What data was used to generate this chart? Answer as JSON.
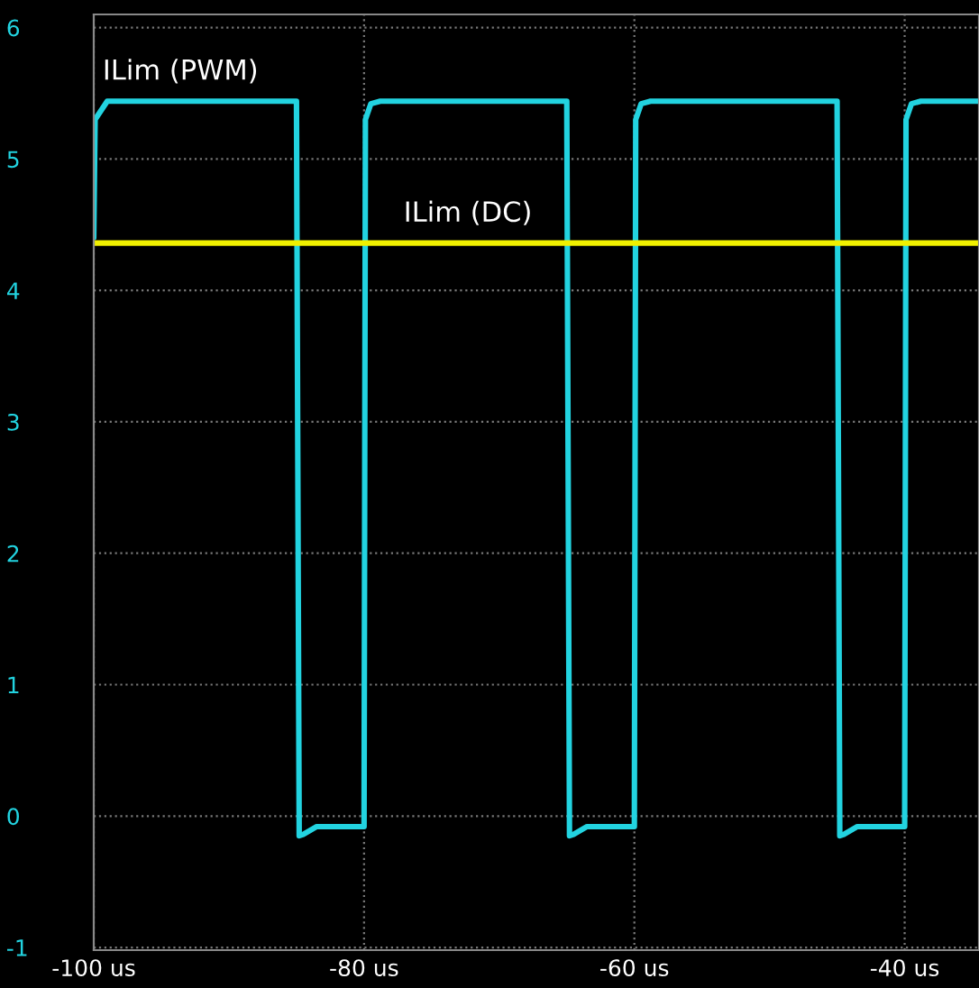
{
  "chart_data": {
    "type": "line",
    "xlim": [
      -100,
      -34.5
    ],
    "ylim": [
      -1.02,
      6.1
    ],
    "xticks": [
      {
        "value": -100,
        "label": "-100 us"
      },
      {
        "value": -80,
        "label": "-80 us"
      },
      {
        "value": -60,
        "label": "-60 us"
      },
      {
        "value": -40,
        "label": "-40 us"
      }
    ],
    "yticks": [
      {
        "value": -1,
        "label": "-1"
      },
      0,
      1,
      2,
      3,
      4,
      5,
      6
    ],
    "grid": true,
    "legend": false,
    "marker": "none",
    "line_style": "solid",
    "series": [
      {
        "name": "ILim (PWM)",
        "color": "#22d3e0",
        "x": [
          -100,
          -99.9,
          -99,
          -85,
          -84.8,
          -84.5,
          -83.5,
          -80.0,
          -79.9,
          -79.5,
          -78.8,
          -65,
          -64.8,
          -64.5,
          -63.5,
          -60.0,
          -59.9,
          -59.5,
          -58.8,
          -45,
          -44.8,
          -44.5,
          -43.5,
          -40.0,
          -39.9,
          -39.5,
          -38.8,
          -34.5
        ],
        "values": [
          4.4,
          5.3,
          5.44,
          5.44,
          -0.15,
          -0.14,
          -0.08,
          -0.08,
          5.3,
          5.42,
          5.44,
          5.44,
          -0.15,
          -0.14,
          -0.08,
          -0.08,
          5.3,
          5.42,
          5.44,
          5.44,
          -0.15,
          -0.14,
          -0.08,
          -0.08,
          5.3,
          5.42,
          5.44,
          5.44
        ]
      },
      {
        "name": "ILim (DC)",
        "color": "#f0f000",
        "x": [
          -100,
          -34.5
        ],
        "values": [
          4.36,
          4.36
        ]
      }
    ]
  }
}
